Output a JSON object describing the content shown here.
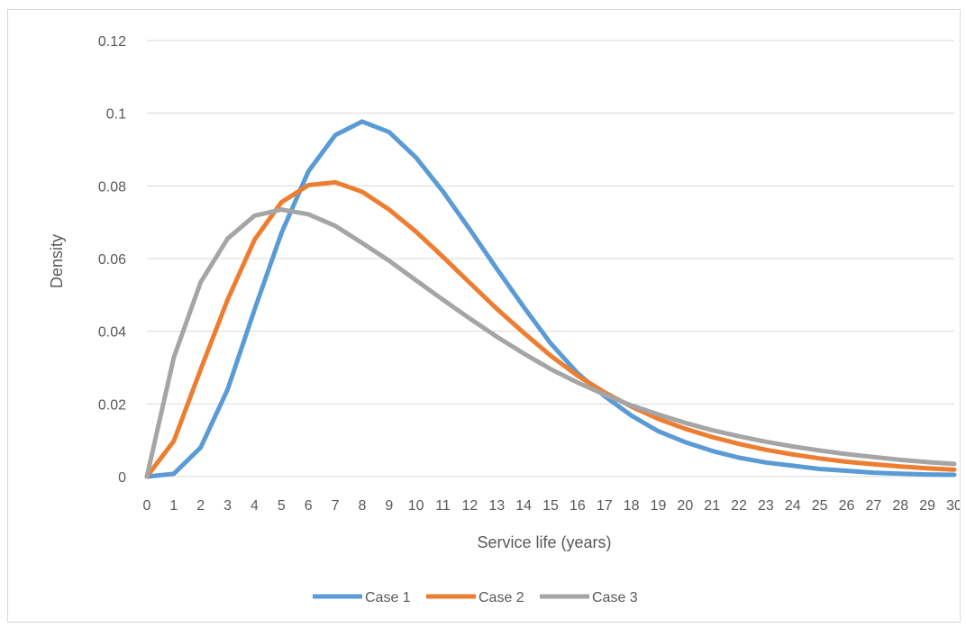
{
  "chart_data": {
    "type": "line",
    "title": "",
    "xlabel": "Service life (years)",
    "ylabel": "Density",
    "x": [
      0,
      1,
      2,
      3,
      4,
      5,
      6,
      7,
      8,
      9,
      10,
      11,
      12,
      13,
      14,
      15,
      16,
      17,
      18,
      19,
      20,
      21,
      22,
      23,
      24,
      25,
      26,
      27,
      28,
      29,
      30
    ],
    "x_tick_labels": [
      "0",
      "1",
      "2",
      "3",
      "4",
      "5",
      "6",
      "7",
      "8",
      "9",
      "10",
      "11",
      "12",
      "13",
      "14",
      "15",
      "16",
      "17",
      "18",
      "19",
      "20",
      "21",
      "22",
      "23",
      "24",
      "25",
      "26",
      "27",
      "28",
      "29",
      "30"
    ],
    "y_tick_labels": [
      "0",
      "0.02",
      "0.04",
      "0.06",
      "0.08",
      "0.1",
      "0.12"
    ],
    "y_ticks": [
      0,
      0.02,
      0.04,
      0.06,
      0.08,
      0.1,
      0.12
    ],
    "ylim": [
      0,
      0.12
    ],
    "xlim": [
      0,
      30
    ],
    "grid": "horizontal",
    "legend_position": "bottom",
    "series": [
      {
        "name": "Case 1",
        "color": "#5b9bd5",
        "values": [
          0,
          0.0008,
          0.008,
          0.024,
          0.046,
          0.067,
          0.084,
          0.094,
          0.0977,
          0.0948,
          0.0878,
          0.0785,
          0.068,
          0.0572,
          0.0467,
          0.0367,
          0.0285,
          0.0222,
          0.0168,
          0.0125,
          0.0095,
          0.0071,
          0.0052,
          0.0039,
          0.003,
          0.0021,
          0.0016,
          0.0011,
          0.0008,
          0.0006,
          0.0005
        ]
      },
      {
        "name": "Case 2",
        "color": "#ed7d31",
        "values": [
          0,
          0.0098,
          0.0295,
          0.0487,
          0.0652,
          0.0755,
          0.0802,
          0.081,
          0.0784,
          0.0735,
          0.0674,
          0.0605,
          0.0533,
          0.0462,
          0.0396,
          0.0333,
          0.0278,
          0.0232,
          0.0193,
          0.0159,
          0.0132,
          0.0109,
          0.009,
          0.0074,
          0.0061,
          0.005,
          0.0041,
          0.0034,
          0.0028,
          0.0023,
          0.0019
        ]
      },
      {
        "name": "Case 3",
        "color": "#a5a5a5",
        "values": [
          0,
          0.0328,
          0.0535,
          0.0655,
          0.0718,
          0.0735,
          0.0722,
          0.069,
          0.0643,
          0.0594,
          0.054,
          0.0487,
          0.0435,
          0.0385,
          0.0339,
          0.0296,
          0.0259,
          0.0226,
          0.0196,
          0.0171,
          0.0148,
          0.0128,
          0.0111,
          0.0096,
          0.0083,
          0.0072,
          0.0062,
          0.0054,
          0.0046,
          0.004,
          0.0035
        ]
      }
    ]
  }
}
